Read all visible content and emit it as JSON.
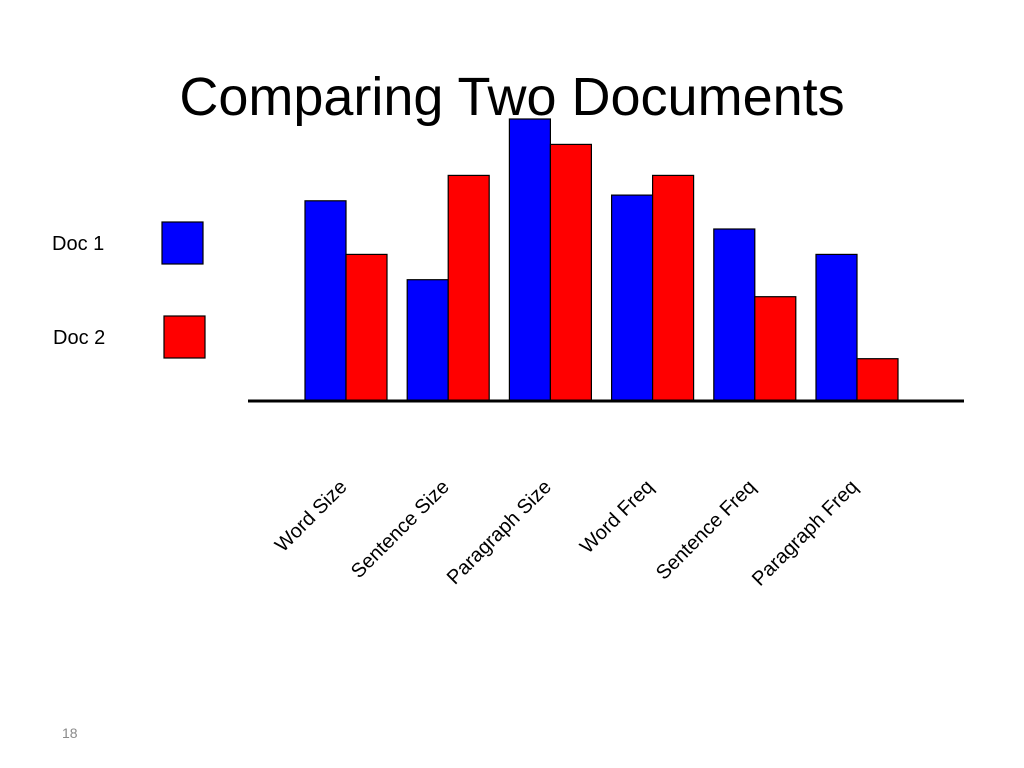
{
  "slide": {
    "title": "Comparing Two Documents",
    "number": "18"
  },
  "chart_data": {
    "type": "bar",
    "title": "",
    "xlabel": "",
    "ylabel": "",
    "categories": [
      "Word Size",
      "Sentence Size",
      "Paragraph Size",
      "Word Freq",
      "Sentence Freq",
      "Paragraph Freq"
    ],
    "series": [
      {
        "name": "Doc 1",
        "color": "#0000ff",
        "values": [
          7.1,
          4.3,
          10.0,
          7.3,
          6.1,
          5.2
        ]
      },
      {
        "name": "Doc 2",
        "color": "#ff0000",
        "values": [
          5.2,
          8.0,
          9.1,
          8.0,
          3.7,
          1.5
        ]
      }
    ],
    "ylim": [
      0,
      10
    ],
    "grid": false,
    "y_axis_shown": false,
    "legend_placement": "left"
  }
}
